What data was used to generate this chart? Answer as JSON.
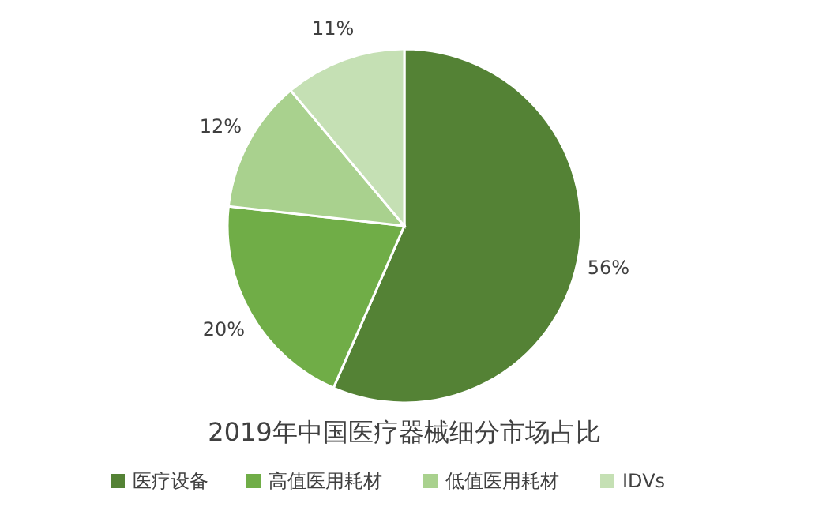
{
  "chart_data": {
    "type": "pie",
    "title": "2019年中国医疗器械细分市场占比",
    "categories": [
      "医疗设备",
      "高值医用耗材",
      "低值医用耗材",
      "IDVs"
    ],
    "values": [
      56,
      20,
      12,
      11
    ],
    "colors": [
      "#548235",
      "#70ad47",
      "#a9d18e",
      "#c5e0b4"
    ],
    "value_labels": [
      "56%",
      "20%",
      "12%",
      "11%"
    ],
    "legend": "bottom"
  }
}
